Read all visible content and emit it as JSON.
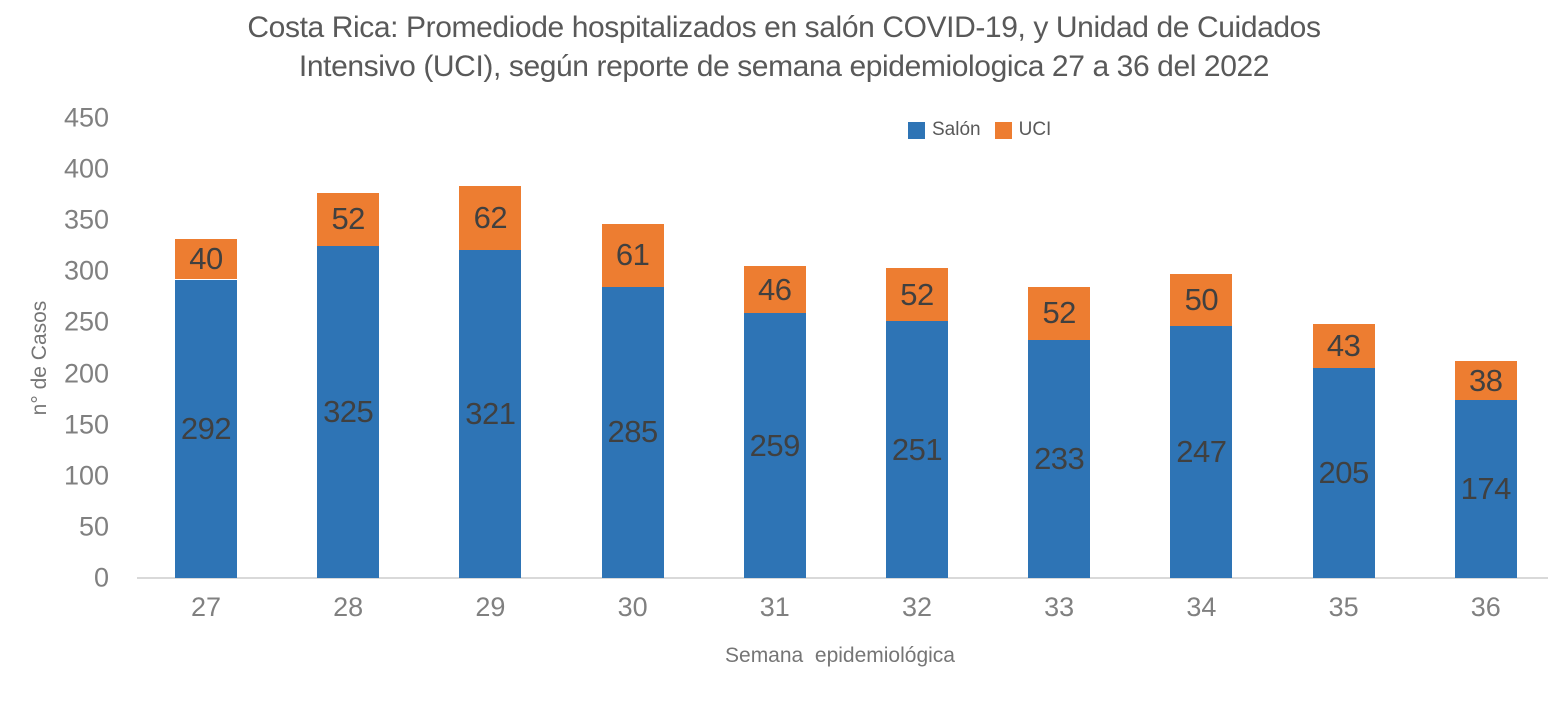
{
  "chart_data": {
    "type": "bar",
    "stacked": true,
    "title": "Costa Rica: Promediode hospitalizados en salón COVID-19, y Unidad de Cuidados Intensivo (UCI), según reporte de semana epidemiologica 27 a 36 del 2022",
    "title_lines": [
      "Costa Rica: Promediode hospitalizados en salón COVID-19, y Unidad de Cuidados",
      "Intensivo (UCI), según reporte de semana epidemiologica 27 a 36 del 2022"
    ],
    "xlabel": "Semana  epidemiológica",
    "ylabel": "n° de Casos",
    "categories": [
      "27",
      "28",
      "29",
      "30",
      "31",
      "32",
      "33",
      "34",
      "35",
      "36"
    ],
    "series": [
      {
        "name": "Salón",
        "color": "#2E74B5",
        "values": [
          292,
          325,
          321,
          285,
          259,
          251,
          233,
          247,
          205,
          174
        ]
      },
      {
        "name": "UCI",
        "color": "#ED7D31",
        "values": [
          40,
          52,
          62,
          61,
          46,
          52,
          52,
          50,
          43,
          38
        ]
      }
    ],
    "ylim": [
      0,
      450
    ],
    "yticks": [
      0,
      50,
      100,
      150,
      200,
      250,
      300,
      350,
      400,
      450
    ],
    "grid": "off",
    "legend_position": "top-center",
    "data_labels": true
  }
}
